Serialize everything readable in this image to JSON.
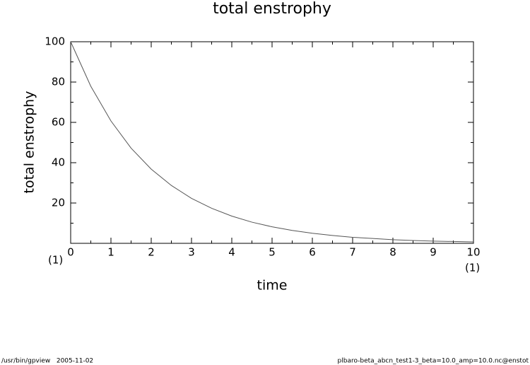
{
  "chart_data": {
    "type": "line",
    "title": "total enstrophy",
    "x_label": "time",
    "y_label": "total enstrophy",
    "x_unit_left": "(1)",
    "x_unit_right": "(1)",
    "x": [
      0,
      0.5,
      1,
      1.5,
      2,
      2.5,
      3,
      3.5,
      4,
      4.5,
      5,
      5.5,
      6,
      6.5,
      7,
      7.5,
      8,
      8.5,
      9,
      9.5,
      10
    ],
    "values": [
      100,
      77.9,
      60.7,
      47.2,
      36.8,
      28.7,
      22.3,
      17.4,
      13.5,
      10.5,
      8.2,
      6.4,
      5.0,
      3.9,
      3.0,
      2.4,
      1.8,
      1.4,
      1.1,
      0.9,
      0.7
    ],
    "color": "#555555",
    "xlim": [
      0,
      10
    ],
    "xticks": [
      0,
      1,
      2,
      3,
      4,
      5,
      6,
      7,
      8,
      9,
      10
    ],
    "xminorticks": [
      0.5,
      1.5,
      2.5,
      3.5,
      4.5,
      5.5,
      6.5,
      7.5,
      8.5,
      9.5
    ],
    "ylim": [
      0,
      100
    ],
    "yticks": [
      20,
      40,
      60,
      80,
      100
    ],
    "yminorticks": [
      10,
      30,
      50,
      70,
      90
    ]
  },
  "footer": {
    "left": "/usr/bin/gpview   2005-11-02",
    "right": "plbaro-beta_abcn_test1-3_beta=10.0_amp=10.0.nc@enstot"
  }
}
